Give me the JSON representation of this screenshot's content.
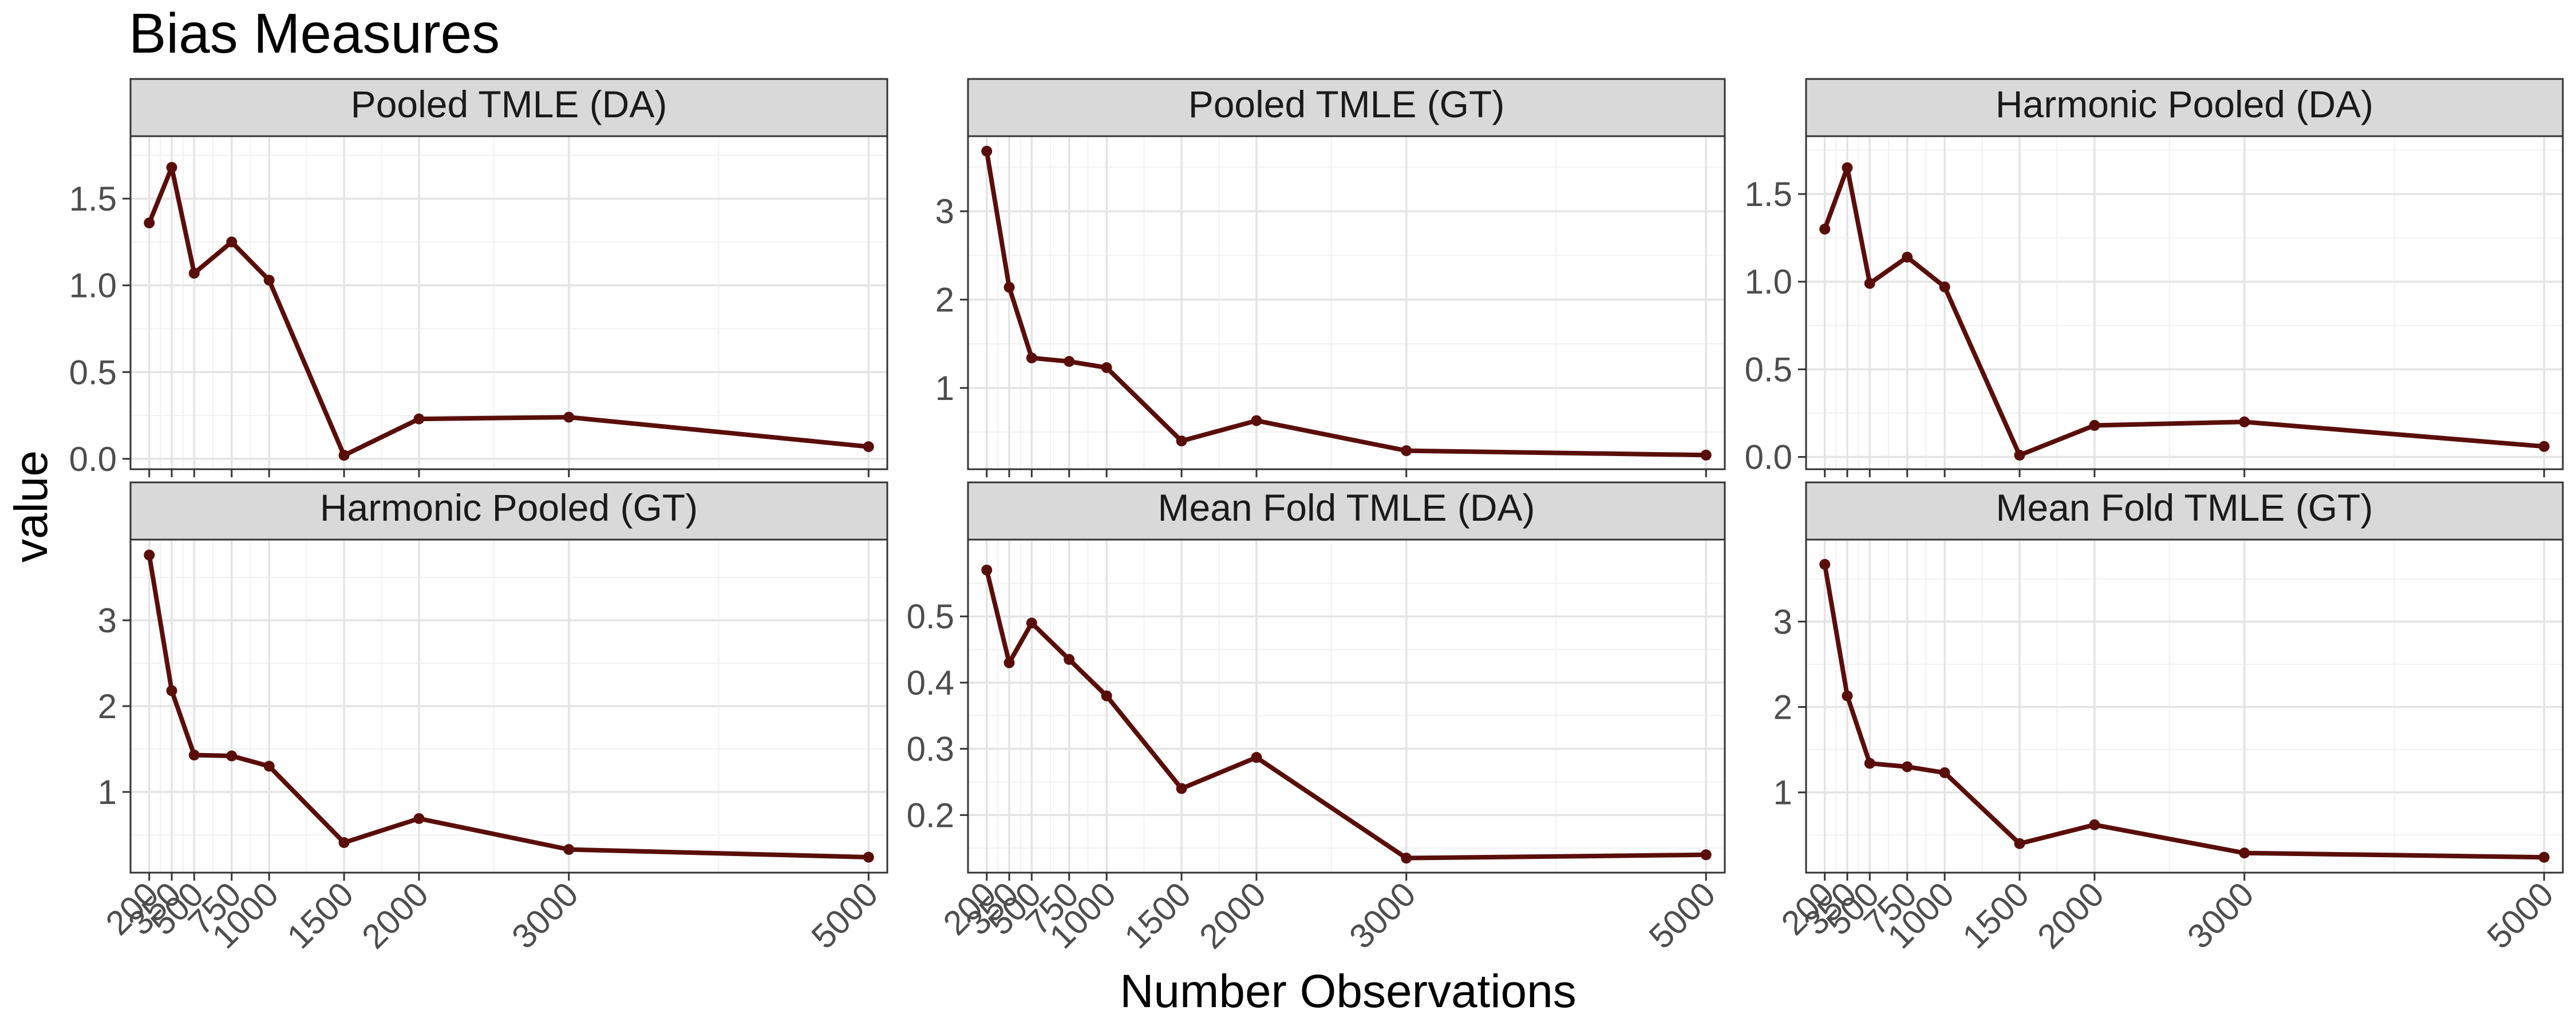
{
  "title": "Bias Measures",
  "xlabel": "Number Observations",
  "ylabel": "value",
  "colors": {
    "line": "#5a0e0a",
    "strip_bg": "#d9d9d9",
    "panel_border": "#333333",
    "grid_major": "#e4e4e4",
    "grid_minor": "#f1f1f1"
  },
  "chart_data": {
    "type": "line",
    "title": "Bias Measures",
    "xlabel": "Number Observations",
    "ylabel": "value",
    "grid": true,
    "facets": "2x3",
    "x": [
      200,
      350,
      500,
      750,
      1000,
      1500,
      2000,
      3000,
      5000
    ],
    "x_ticks": [
      "200",
      "350",
      "500",
      "750",
      "1000",
      "1500",
      "2000",
      "3000",
      "5000"
    ],
    "panels": [
      {
        "name": "Pooled TMLE (DA)",
        "values": [
          1.36,
          1.68,
          1.07,
          1.25,
          1.03,
          0.02,
          0.23,
          0.24,
          0.07
        ],
        "ylim": [
          -0.06,
          1.86
        ],
        "yticks": [
          0.0,
          0.5,
          1.0,
          1.5
        ],
        "ytick_labels": [
          "0.0",
          "0.5",
          "1.0",
          "1.5"
        ]
      },
      {
        "name": "Pooled TMLE (GT)",
        "values": [
          3.68,
          2.14,
          1.34,
          1.3,
          1.23,
          0.4,
          0.63,
          0.29,
          0.24
        ],
        "ylim": [
          0.08,
          3.85
        ],
        "yticks": [
          1,
          2,
          3
        ],
        "ytick_labels": [
          "1",
          "2",
          "3"
        ]
      },
      {
        "name": "Harmonic Pooled (DA)",
        "values": [
          1.3,
          1.65,
          0.99,
          1.14,
          0.97,
          0.01,
          0.18,
          0.2,
          0.06
        ],
        "ylim": [
          -0.07,
          1.83
        ],
        "yticks": [
          0.0,
          0.5,
          1.0,
          1.5
        ],
        "ytick_labels": [
          "0.0",
          "0.5",
          "1.0",
          "1.5"
        ]
      },
      {
        "name": "Harmonic Pooled (GT)",
        "values": [
          3.76,
          2.18,
          1.43,
          1.42,
          1.3,
          0.41,
          0.69,
          0.33,
          0.24
        ],
        "ylim": [
          0.06,
          3.94
        ],
        "yticks": [
          1,
          2,
          3
        ],
        "ytick_labels": [
          "1",
          "2",
          "3"
        ]
      },
      {
        "name": "Mean Fold TMLE (DA)",
        "values": [
          0.57,
          0.43,
          0.49,
          0.435,
          0.38,
          0.24,
          0.287,
          0.135,
          0.14
        ],
        "ylim": [
          0.113,
          0.616
        ],
        "yticks": [
          0.2,
          0.3,
          0.4,
          0.5
        ],
        "ytick_labels": [
          "0.2",
          "0.3",
          "0.4",
          "0.5"
        ]
      },
      {
        "name": "Mean Fold TMLE (GT)",
        "values": [
          3.67,
          2.13,
          1.34,
          1.3,
          1.23,
          0.4,
          0.62,
          0.29,
          0.24
        ],
        "ylim": [
          0.06,
          3.96
        ],
        "yticks": [
          1,
          2,
          3
        ],
        "ytick_labels": [
          "1",
          "2",
          "3"
        ]
      }
    ]
  }
}
